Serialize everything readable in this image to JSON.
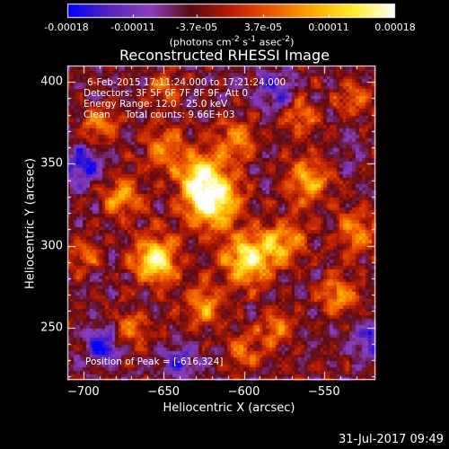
{
  "colorbar": {
    "ticks": [
      "-0.00018",
      "-0.00011",
      "-3.7e-05",
      "3.7e-05",
      "0.00011",
      "0.00018"
    ],
    "unit_html": "(photons cm<sup>-2</sup> s<sup>-1</sup> asec<sup>-2</sup>)",
    "colormap": [
      "#0000ff",
      "#5522bb",
      "#8a3fbf",
      "#5a0a12",
      "#bb1d05",
      "#ee5a00",
      "#ffaa00",
      "#ffee33",
      "#ffffff"
    ]
  },
  "chart_data": {
    "type": "heatmap",
    "title": "Reconstructed RHESSI Image",
    "xlabel": "Heliocentric X (arcsec)",
    "ylabel": "Heliocentric Y (arcsec)",
    "xlim": [
      -710,
      -518
    ],
    "ylim": [
      218,
      410
    ],
    "xticks": [
      {
        "v": -700,
        "label": "−700"
      },
      {
        "v": -650,
        "label": "−650"
      },
      {
        "v": -600,
        "label": "−600"
      },
      {
        "v": -550,
        "label": "−550"
      }
    ],
    "yticks": [
      {
        "v": 250,
        "label": "250"
      },
      {
        "v": 300,
        "label": "300"
      },
      {
        "v": 350,
        "label": "350"
      },
      {
        "v": 400,
        "label": "400"
      }
    ],
    "peak": [
      -616,
      324
    ],
    "blobs": [
      [
        -620,
        328,
        12,
        1.0
      ],
      [
        -628,
        345,
        10,
        0.65
      ],
      [
        -655,
        292,
        10,
        0.9
      ],
      [
        -598,
        292,
        11,
        0.85
      ],
      [
        -575,
        302,
        10,
        0.6
      ],
      [
        -530,
        310,
        9,
        0.55
      ],
      [
        -560,
        340,
        10,
        0.6
      ],
      [
        -690,
        375,
        8,
        0.5
      ],
      [
        -675,
        330,
        9,
        0.55
      ],
      [
        -650,
        360,
        9,
        0.5
      ],
      [
        -605,
        365,
        9,
        0.55
      ],
      [
        -565,
        380,
        8,
        0.45
      ],
      [
        -540,
        270,
        9,
        0.55
      ],
      [
        -580,
        250,
        8,
        0.5
      ],
      [
        -625,
        265,
        9,
        0.55
      ],
      [
        -670,
        250,
        8,
        0.45
      ],
      [
        -700,
        295,
        7,
        0.4
      ],
      [
        -530,
        390,
        8,
        0.45
      ],
      [
        -600,
        235,
        8,
        0.4
      ],
      [
        -650,
        395,
        8,
        0.4
      ],
      [
        -688,
        240,
        7,
        -0.6
      ],
      [
        -700,
        350,
        8,
        -0.5
      ],
      [
        -520,
        245,
        8,
        -0.4
      ],
      [
        -580,
        395,
        8,
        -0.45
      ],
      [
        -640,
        230,
        7,
        -0.35
      ]
    ]
  },
  "annotations": [
    "6-Feb-2015 17:11:24.000 to 17:21:24.000",
    "Detectors: 3F 5F 6F 7F 8F 9F, Att 0",
    "Energy Range: 12.0 - 25.0 keV",
    "Clean     Total counts: 9.66E+03",
    "Position of Peak = [-616,324]"
  ],
  "timestamp": "31-Jul-2017 09:49"
}
